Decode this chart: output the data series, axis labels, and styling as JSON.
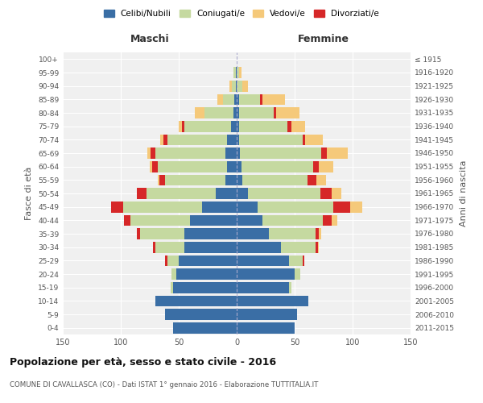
{
  "age_groups": [
    "0-4",
    "5-9",
    "10-14",
    "15-19",
    "20-24",
    "25-29",
    "30-34",
    "35-39",
    "40-44",
    "45-49",
    "50-54",
    "55-59",
    "60-64",
    "65-69",
    "70-74",
    "75-79",
    "80-84",
    "85-89",
    "90-94",
    "95-99",
    "100+"
  ],
  "birth_years": [
    "2011-2015",
    "2006-2010",
    "2001-2005",
    "1996-2000",
    "1991-1995",
    "1986-1990",
    "1981-1985",
    "1976-1980",
    "1971-1975",
    "1966-1970",
    "1961-1965",
    "1956-1960",
    "1951-1955",
    "1946-1950",
    "1941-1945",
    "1936-1940",
    "1931-1935",
    "1926-1930",
    "1921-1925",
    "1916-1920",
    "≤ 1915"
  ],
  "maschi": {
    "celibi": [
      55,
      62,
      70,
      55,
      52,
      50,
      45,
      45,
      40,
      30,
      18,
      10,
      8,
      10,
      8,
      5,
      3,
      2,
      1,
      1,
      0
    ],
    "coniugati": [
      0,
      0,
      0,
      2,
      4,
      10,
      25,
      38,
      52,
      68,
      60,
      52,
      60,
      60,
      52,
      40,
      25,
      10,
      3,
      2,
      0
    ],
    "vedovi": [
      0,
      0,
      0,
      0,
      0,
      0,
      0,
      0,
      0,
      0,
      0,
      1,
      2,
      3,
      3,
      3,
      8,
      5,
      2,
      0,
      0
    ],
    "divorziati": [
      0,
      0,
      0,
      0,
      0,
      2,
      2,
      3,
      5,
      10,
      8,
      5,
      5,
      4,
      3,
      2,
      0,
      0,
      0,
      0,
      0
    ]
  },
  "femmine": {
    "nubili": [
      50,
      52,
      62,
      45,
      50,
      45,
      38,
      28,
      22,
      18,
      10,
      5,
      4,
      3,
      2,
      2,
      2,
      2,
      0,
      0,
      0
    ],
    "coniugate": [
      0,
      0,
      0,
      2,
      5,
      12,
      30,
      40,
      52,
      65,
      62,
      56,
      62,
      70,
      55,
      42,
      30,
      18,
      5,
      2,
      0
    ],
    "vedove": [
      0,
      0,
      0,
      0,
      0,
      0,
      1,
      2,
      5,
      10,
      8,
      8,
      12,
      18,
      15,
      12,
      20,
      20,
      5,
      2,
      0
    ],
    "divorziate": [
      0,
      0,
      0,
      0,
      0,
      1,
      2,
      3,
      8,
      15,
      10,
      8,
      5,
      5,
      2,
      3,
      2,
      2,
      0,
      0,
      0
    ]
  },
  "colors": {
    "celibi": "#3a6ea5",
    "coniugati": "#c5d9a0",
    "vedovi": "#f5c97a",
    "divorziati": "#d62728"
  },
  "xlim": 150,
  "title": "Popolazione per età, sesso e stato civile - 2016",
  "subtitle": "COMUNE DI CAVALLASCA (CO) - Dati ISTAT 1° gennaio 2016 - Elaborazione TUTTITALIA.IT",
  "ylabel_left": "Fasce di età",
  "ylabel_right": "Anni di nascita",
  "bg_color": "#f0f0f0"
}
